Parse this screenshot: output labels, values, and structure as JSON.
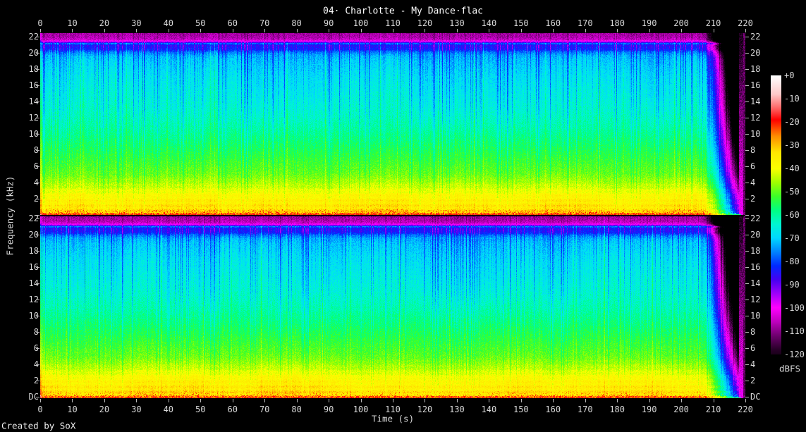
{
  "title": "04· Charlotte - My Dance·flac",
  "credit": "Created by SoX",
  "axes": {
    "time": {
      "label": "Time (s)",
      "tick_values": [
        0,
        10,
        20,
        30,
        40,
        50,
        60,
        70,
        80,
        90,
        100,
        110,
        120,
        130,
        140,
        150,
        160,
        170,
        180,
        190,
        200,
        210,
        220
      ],
      "unit": "s"
    },
    "frequency": {
      "label": "Frequency (kHz)",
      "panel_tick_values": [
        22,
        20,
        18,
        16,
        14,
        12,
        10,
        8,
        6,
        4,
        2
      ],
      "dc_label": "DC",
      "unit": "kHz"
    },
    "legend": {
      "label": "dBFS",
      "tick_labels": [
        "+0",
        "-10",
        "-20",
        "-30",
        "-40",
        "-50",
        "-60",
        "-70",
        "-80",
        "-90",
        "-100",
        "-110",
        "-120"
      ]
    }
  },
  "colors": {
    "background": "#000000",
    "label_text": "#d8d8d8",
    "title_text": "#ffffff",
    "tick": "#b8b8b8"
  },
  "chart_data": {
    "type": "heatmap",
    "subtype": "audio-spectrogram-stereo",
    "channels": [
      "left",
      "right"
    ],
    "x_axis": {
      "label": "Time (s)",
      "range": [
        0,
        220
      ],
      "tick_step": 10
    },
    "y_axis": {
      "label": "Frequency (kHz)",
      "range": [
        0,
        22.26
      ],
      "tick_step": 2
    },
    "z_axis": {
      "label": "dBFS",
      "range": [
        -120,
        0
      ],
      "tick_step": 10
    },
    "audio": {
      "fade_start_s": 206,
      "track_end_s": 217.8,
      "silence_tail_end_s": 219.3,
      "lowpass_cutoff_khz": 21.3,
      "cutoff_magenta_line_khz": 21.3,
      "cutoff_blue_line_khz": 21.0
    },
    "band_profile_dbfs": [
      [
        0.0,
        -20
      ],
      [
        0.1,
        -27
      ],
      [
        0.5,
        -33
      ],
      [
        1.5,
        -35
      ],
      [
        2.5,
        -38
      ],
      [
        3.5,
        -43
      ],
      [
        5.0,
        -49
      ],
      [
        7.0,
        -53
      ],
      [
        9.0,
        -57
      ],
      [
        11.0,
        -61
      ],
      [
        13.0,
        -64
      ],
      [
        15.0,
        -66
      ],
      [
        17.0,
        -68
      ],
      [
        19.0,
        -71
      ],
      [
        19.6,
        -73
      ],
      [
        20.0,
        -77
      ],
      [
        20.3,
        -83
      ],
      [
        20.8,
        -85
      ],
      [
        20.95,
        -80
      ],
      [
        21.05,
        -77
      ],
      [
        21.15,
        -88
      ],
      [
        21.3,
        -99
      ],
      [
        21.5,
        -105
      ],
      [
        21.8,
        -107
      ],
      [
        22.3,
        -108
      ]
    ],
    "colormap_dbfs_rgb": [
      [
        0,
        [
          255,
          255,
          255
        ]
      ],
      [
        -8,
        [
          255,
          200,
          200
        ]
      ],
      [
        -14,
        [
          255,
          100,
          100
        ]
      ],
      [
        -19,
        [
          255,
          0,
          0
        ]
      ],
      [
        -26,
        [
          255,
          140,
          0
        ]
      ],
      [
        -33,
        [
          255,
          230,
          0
        ]
      ],
      [
        -40,
        [
          250,
          255,
          0
        ]
      ],
      [
        -46,
        [
          160,
          255,
          0
        ]
      ],
      [
        -52,
        [
          60,
          255,
          40
        ]
      ],
      [
        -58,
        [
          0,
          255,
          130
        ]
      ],
      [
        -64,
        [
          0,
          245,
          210
        ]
      ],
      [
        -70,
        [
          0,
          215,
          255
        ]
      ],
      [
        -76,
        [
          0,
          130,
          255
        ]
      ],
      [
        -82,
        [
          0,
          40,
          255
        ]
      ],
      [
        -88,
        [
          70,
          0,
          240
        ]
      ],
      [
        -94,
        [
          160,
          0,
          250
        ]
      ],
      [
        -100,
        [
          255,
          0,
          255
        ]
      ],
      [
        -106,
        [
          190,
          0,
          190
        ]
      ],
      [
        -112,
        [
          110,
          0,
          110
        ]
      ],
      [
        -118,
        [
          40,
          0,
          40
        ]
      ],
      [
        -124,
        [
          0,
          0,
          0
        ]
      ]
    ],
    "render": {
      "seeds": [
        1013,
        2027
      ],
      "stripe_dark_prob": 0.2,
      "stripe_bright_prob": 0.07,
      "pixel_noise_db": 6,
      "section_mod_db": 5,
      "fade_db_per_khz": 2.7,
      "fade_base_db": 58
    }
  }
}
